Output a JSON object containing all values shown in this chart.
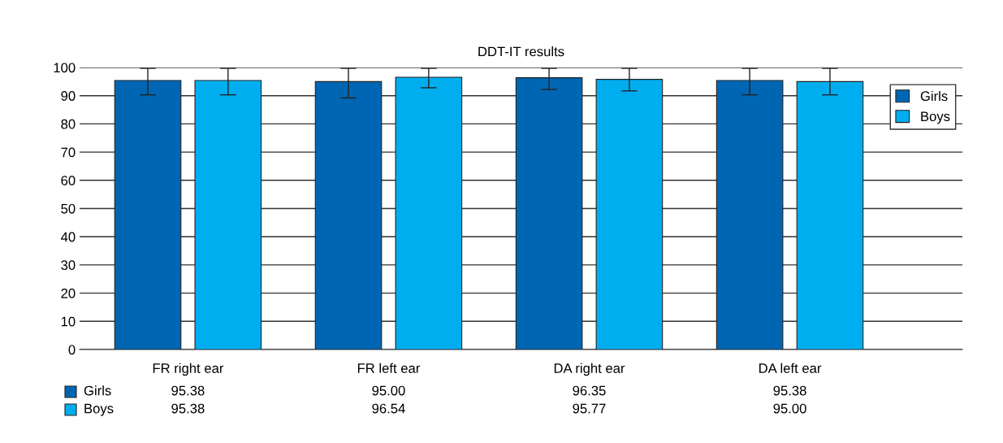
{
  "chart_data": {
    "type": "bar",
    "title": "DDT-IT results",
    "categories": [
      "FR right ear",
      "FR left ear",
      "DA right ear",
      "DA left ear"
    ],
    "series": [
      {
        "name": "Girls",
        "color": "#0066b3",
        "values": [
          95.38,
          95.0,
          96.35,
          95.38
        ],
        "value_labels": [
          "95.38",
          "95.00",
          "96.35",
          "95.38"
        ],
        "errors": [
          [
            90.3,
            99.7
          ],
          [
            89.2,
            99.7
          ],
          [
            92.2,
            99.7
          ],
          [
            90.3,
            99.7
          ]
        ]
      },
      {
        "name": "Boys",
        "color": "#00aeef",
        "values": [
          95.38,
          96.54,
          95.77,
          95.0
        ],
        "value_labels": [
          "95.38",
          "96.54",
          "95.77",
          "95.00"
        ],
        "errors": [
          [
            90.3,
            99.7
          ],
          [
            92.8,
            99.7
          ],
          [
            91.7,
            99.7
          ],
          [
            90.3,
            99.7
          ]
        ]
      }
    ],
    "ylim": [
      0,
      100
    ],
    "yticks": [
      0,
      10,
      20,
      30,
      40,
      50,
      60,
      70,
      80,
      90,
      100
    ],
    "grid": "y",
    "legend": "right"
  }
}
